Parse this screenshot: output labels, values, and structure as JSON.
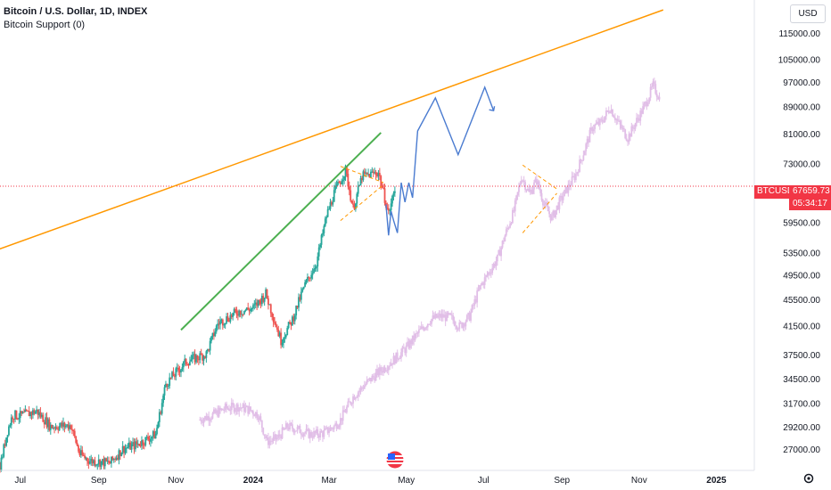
{
  "legend": {
    "title": "Bitcoin / U.S. Dollar, 1D, INDEX",
    "indicator": "Bitcoin Support (0)"
  },
  "currency_button": "USD",
  "price_tag": {
    "symbol": "BTCUSD",
    "price": "67659.73",
    "countdown": "05:34:17"
  },
  "colors": {
    "up": "#26a69a",
    "down": "#ef5350",
    "ghost": "#e1bee7",
    "trendline": "#ff9800",
    "support_segment": "#4caf50",
    "projection": "#4a7bd0",
    "triangle": "#ff9800",
    "price_line": "#f23645"
  },
  "icons": [
    "us-flag-event-icon",
    "settings-gear-icon"
  ],
  "chart_data": {
    "type": "candlestick",
    "title": "Bitcoin / U.S. Dollar, 1D, INDEX",
    "y_scale": "log",
    "y_ticks": [
      "115000.00",
      "105000.00",
      "97000.00",
      "89000.00",
      "81000.00",
      "73000.00",
      "59500.00",
      "53500.00",
      "49500.00",
      "45500.00",
      "41500.00",
      "37500.00",
      "34500.00",
      "31700.00",
      "29200.00",
      "27000.00"
    ],
    "x_ticks": [
      "Jul",
      "Sep",
      "Nov",
      "2024",
      "Mar",
      "May",
      "Jul",
      "Sep",
      "Nov",
      "2025"
    ],
    "x_range": [
      "2023-06-15",
      "2025-01-31"
    ],
    "y_range": [
      26000,
      125000
    ],
    "last_price": 67659.73,
    "real_path": [
      [
        "2023-06-15",
        25500
      ],
      [
        "2023-06-21",
        28900
      ],
      [
        "2023-06-25",
        30500
      ],
      [
        "2023-07-01",
        30400
      ],
      [
        "2023-07-14",
        30900
      ],
      [
        "2023-07-25",
        29300
      ],
      [
        "2023-08-10",
        29400
      ],
      [
        "2023-08-17",
        26600
      ],
      [
        "2023-08-25",
        26000
      ],
      [
        "2023-09-10",
        25800
      ],
      [
        "2023-09-20",
        27100
      ],
      [
        "2023-10-01",
        27500
      ],
      [
        "2023-10-16",
        28500
      ],
      [
        "2023-10-24",
        34000
      ],
      [
        "2023-11-09",
        36700
      ],
      [
        "2023-11-25",
        37700
      ],
      [
        "2023-12-04",
        41900
      ],
      [
        "2023-12-20",
        43700
      ],
      [
        "2024-01-01",
        44200
      ],
      [
        "2024-01-11",
        46500
      ],
      [
        "2024-01-23",
        39500
      ],
      [
        "2024-02-01",
        42500
      ],
      [
        "2024-02-10",
        47500
      ],
      [
        "2024-02-20",
        51800
      ],
      [
        "2024-02-28",
        61000
      ],
      [
        "2024-03-05",
        66000
      ],
      [
        "2024-03-14",
        71500
      ],
      [
        "2024-03-20",
        62500
      ],
      [
        "2024-03-27",
        70000
      ],
      [
        "2024-04-09",
        71000
      ],
      [
        "2024-04-17",
        61500
      ],
      [
        "2024-04-22",
        67000
      ]
    ],
    "ghost_path": [
      [
        "2023-11-20",
        30000
      ],
      [
        "2023-11-30",
        30500
      ],
      [
        "2023-12-10",
        31200
      ],
      [
        "2023-12-20",
        31400
      ],
      [
        "2023-12-30",
        31000
      ],
      [
        "2024-01-05",
        30500
      ],
      [
        "2024-01-12",
        27800
      ],
      [
        "2024-01-20",
        28100
      ],
      [
        "2024-01-28",
        29300
      ],
      [
        "2024-02-05",
        29000
      ],
      [
        "2024-02-15",
        28500
      ],
      [
        "2024-02-25",
        28600
      ],
      [
        "2024-03-05",
        29300
      ],
      [
        "2024-03-10",
        30000
      ],
      [
        "2024-03-20",
        32500
      ],
      [
        "2024-03-30",
        34000
      ],
      [
        "2024-04-10",
        35500
      ],
      [
        "2024-04-20",
        36800
      ],
      [
        "2024-05-01",
        38500
      ],
      [
        "2024-05-10",
        40500
      ],
      [
        "2024-05-20",
        42500
      ],
      [
        "2024-05-28",
        43000
      ],
      [
        "2024-06-05",
        42800
      ],
      [
        "2024-06-12",
        41500
      ],
      [
        "2024-06-20",
        43000
      ],
      [
        "2024-06-28",
        47500
      ],
      [
        "2024-07-05",
        50000
      ],
      [
        "2024-07-12",
        52500
      ],
      [
        "2024-07-18",
        57000
      ],
      [
        "2024-07-25",
        62000
      ],
      [
        "2024-07-31",
        70000
      ],
      [
        "2024-08-06",
        66000
      ],
      [
        "2024-08-12",
        69000
      ],
      [
        "2024-08-18",
        63500
      ],
      [
        "2024-08-24",
        60500
      ],
      [
        "2024-08-30",
        64000
      ],
      [
        "2024-09-05",
        67000
      ],
      [
        "2024-09-12",
        70500
      ],
      [
        "2024-09-18",
        76000
      ],
      [
        "2024-09-25",
        83000
      ],
      [
        "2024-10-02",
        84500
      ],
      [
        "2024-10-09",
        89000
      ],
      [
        "2024-10-16",
        84000
      ],
      [
        "2024-10-23",
        80000
      ],
      [
        "2024-10-30",
        85000
      ],
      [
        "2024-11-06",
        90000
      ],
      [
        "2024-11-12",
        96000
      ],
      [
        "2024-11-17",
        92000
      ]
    ],
    "projection": [
      [
        "2024-04-15",
        63500
      ],
      [
        "2024-04-17",
        57000
      ],
      [
        "2024-04-19",
        62000
      ],
      [
        "2024-04-21",
        60000
      ],
      [
        "2024-04-24",
        57500
      ],
      [
        "2024-04-27",
        68500
      ],
      [
        "2024-04-30",
        64000
      ],
      [
        "2024-05-03",
        68500
      ],
      [
        "2024-05-06",
        65000
      ],
      [
        "2024-05-10",
        82000
      ],
      [
        "2024-05-24",
        92000
      ],
      [
        "2024-06-11",
        75500
      ],
      [
        "2024-07-02",
        95500
      ],
      [
        "2024-07-09",
        88000
      ]
    ],
    "support_line": [
      [
        "2023-05-25",
        52600
      ],
      [
        "2024-11-20",
        125000
      ]
    ],
    "support_highlight": [
      [
        "2023-11-05",
        41000
      ],
      [
        "2024-04-11",
        81500
      ]
    ],
    "triangle_real": [
      [
        [
          "2024-03-10",
          72500
        ],
        [
          "2024-04-13",
          68500
        ]
      ],
      [
        [
          "2024-03-10",
          60000
        ],
        [
          "2024-04-13",
          68000
        ]
      ]
    ],
    "triangle_ghost": [
      [
        [
          "2024-08-01",
          72800
        ],
        [
          "2024-08-28",
          67000
        ]
      ],
      [
        [
          "2024-08-01",
          57500
        ],
        [
          "2024-08-28",
          66000
        ]
      ]
    ]
  }
}
